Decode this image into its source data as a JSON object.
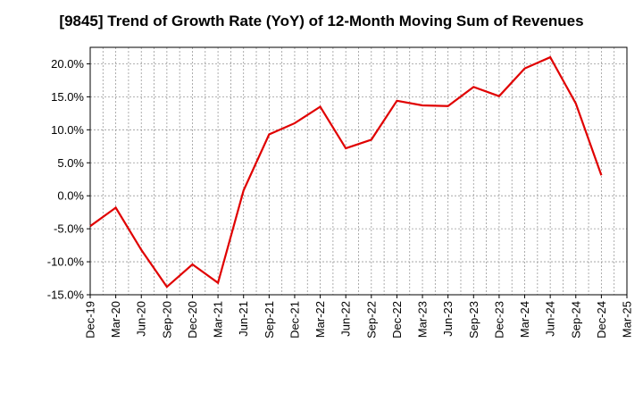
{
  "chart_data": {
    "type": "line",
    "title": "[9845]  Trend of Growth Rate (YoY) of 12-Month Moving Sum of Revenues",
    "xlabel": "",
    "ylabel": "",
    "x_ticks": [
      "Dec-19",
      "Mar-20",
      "Jun-20",
      "Sep-20",
      "Dec-20",
      "Mar-21",
      "Jun-21",
      "Sep-21",
      "Dec-21",
      "Mar-22",
      "Jun-22",
      "Sep-22",
      "Dec-22",
      "Mar-23",
      "Jun-23",
      "Sep-23",
      "Dec-23",
      "Mar-24",
      "Jun-24",
      "Sep-24",
      "Dec-24",
      "Mar-25"
    ],
    "y_ticks": [
      "20.0%",
      "15.0%",
      "10.0%",
      "5.0%",
      "0.0%",
      "-5.0%",
      "-10.0%",
      "-15.0%"
    ],
    "y_tick_values": [
      20,
      15,
      10,
      5,
      0,
      -5,
      -10,
      -15
    ],
    "ylim": [
      -15,
      22.5
    ],
    "grid": true,
    "series": [
      {
        "color": "#e00000",
        "x": [
          "Dec-19",
          "Mar-20",
          "Jun-20",
          "Sep-20",
          "Dec-20",
          "Mar-21",
          "Jun-21",
          "Sep-21",
          "Dec-21",
          "Mar-22",
          "Jun-22",
          "Sep-22",
          "Dec-22",
          "Mar-23",
          "Jun-23",
          "Sep-23",
          "Dec-23",
          "Mar-24",
          "Jun-24",
          "Sep-24",
          "Dec-24"
        ],
        "values": [
          -4.6,
          -1.8,
          -8.2,
          -13.8,
          -10.4,
          -13.2,
          0.8,
          9.3,
          11.0,
          13.5,
          7.2,
          8.5,
          14.4,
          13.7,
          13.6,
          16.5,
          15.1,
          19.3,
          21.0,
          14.0,
          3.1
        ]
      }
    ]
  }
}
